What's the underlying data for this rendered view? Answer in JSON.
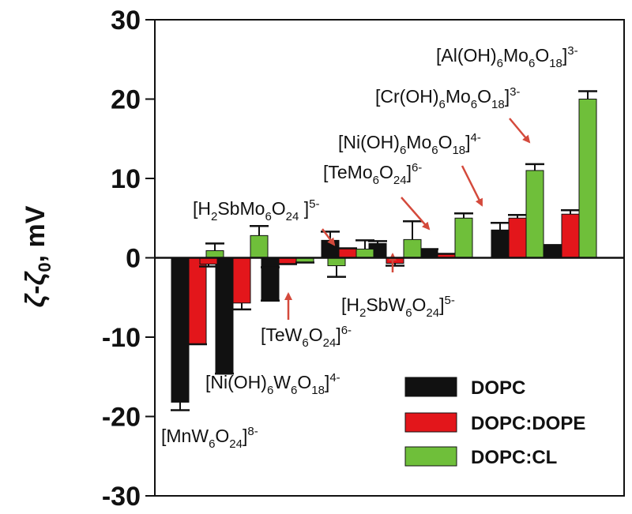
{
  "chart_data": {
    "type": "bar",
    "ylabel": "ζ-ζ0, mV",
    "ylabel_parts": {
      "zeta": "ζ",
      "dash": "-",
      "zeta0": "ζ",
      "sub0": "0",
      "unit": ", mV"
    },
    "ylim": [
      -30,
      30
    ],
    "yticks": [
      -30,
      -20,
      -10,
      0,
      10,
      20,
      30
    ],
    "ytick_labels": [
      "-30",
      "-20",
      "-10",
      "0",
      "10",
      "20",
      "30"
    ],
    "grid": false,
    "legend_position": "bottom-right",
    "series": [
      {
        "name": "DOPC",
        "color": "#111111",
        "values": [
          -18.2,
          -14.6,
          -5.4,
          2.2,
          1.8,
          1.1,
          3.5,
          1.6
        ],
        "errors": [
          1.0,
          0.0,
          0.0,
          1.1,
          0.3,
          0.0,
          0.9,
          0.0
        ]
      },
      {
        "name": "DOPC:DOPE",
        "color": "#e3161b",
        "values": [
          -10.9,
          -5.7,
          -0.8,
          1.2,
          -0.7,
          0.5,
          5.0,
          5.5
        ],
        "errors": [
          0.0,
          0.8,
          0.0,
          0.0,
          0.3,
          0.0,
          0.4,
          0.5
        ]
      },
      {
        "name": "DOPC:CL",
        "color": "#6fbf3a",
        "values": [
          0.9,
          2.8,
          -0.6,
          1.1,
          2.3,
          5.0,
          11.0,
          20.0
        ],
        "errors": [
          0.9,
          1.2,
          0.0,
          1.1,
          2.3,
          0.6,
          0.8,
          1.0
        ]
      }
    ],
    "extra_bars": [
      {
        "series": 1,
        "group": 0,
        "value": -0.8,
        "error": 0.3
      },
      {
        "series": 0,
        "group": 2,
        "value": -1.2,
        "error": 0.0
      },
      {
        "series": 2,
        "group": 2,
        "value": -1.0,
        "error": 1.4
      }
    ],
    "annotations": [
      {
        "id": "mnw6o24",
        "parts": [
          [
            "[MnW",
            ""
          ],
          [
            "6",
            "sub"
          ],
          [
            "O",
            ""
          ],
          [
            "24",
            "sub"
          ],
          [
            "]",
            ""
          ],
          [
            "8-",
            "sup"
          ]
        ]
      },
      {
        "id": "nioh6w6o18",
        "parts": [
          [
            "[Ni(OH)",
            ""
          ],
          [
            "6",
            "sub"
          ],
          [
            "W",
            ""
          ],
          [
            "6",
            "sub"
          ],
          [
            "O",
            ""
          ],
          [
            "18",
            "sub"
          ],
          [
            "]",
            ""
          ],
          [
            "4-",
            "sup"
          ]
        ]
      },
      {
        "id": "tew6o24",
        "parts": [
          [
            "[TeW",
            ""
          ],
          [
            "6",
            "sub"
          ],
          [
            "O",
            ""
          ],
          [
            "24",
            "sub"
          ],
          [
            "]",
            ""
          ],
          [
            "6-",
            "sup"
          ]
        ]
      },
      {
        "id": "h2sbmo6o24",
        "parts": [
          [
            "[H",
            ""
          ],
          [
            "2",
            "sub"
          ],
          [
            "SbMo",
            ""
          ],
          [
            "6",
            "sub"
          ],
          [
            "O",
            ""
          ],
          [
            "24",
            "sub"
          ],
          [
            " ]",
            ""
          ],
          [
            "5-",
            "sup"
          ]
        ]
      },
      {
        "id": "h2sbw6o24",
        "parts": [
          [
            "[H",
            ""
          ],
          [
            "2",
            "sub"
          ],
          [
            "SbW",
            ""
          ],
          [
            "6",
            "sub"
          ],
          [
            "O",
            ""
          ],
          [
            "24",
            "sub"
          ],
          [
            "]",
            ""
          ],
          [
            "5-",
            "sup"
          ]
        ]
      },
      {
        "id": "temo6o24",
        "parts": [
          [
            "[TeMo",
            ""
          ],
          [
            "6",
            "sub"
          ],
          [
            "O",
            ""
          ],
          [
            "24",
            "sub"
          ],
          [
            "]",
            ""
          ],
          [
            "6-",
            "sup"
          ]
        ]
      },
      {
        "id": "niohmo6o18",
        "parts": [
          [
            "[Ni(OH)",
            ""
          ],
          [
            "6",
            "sub"
          ],
          [
            "Mo",
            ""
          ],
          [
            "6",
            "sub"
          ],
          [
            "O",
            ""
          ],
          [
            "18",
            "sub"
          ],
          [
            "]",
            ""
          ],
          [
            "4-",
            "sup"
          ]
        ]
      },
      {
        "id": "crohmo6o18",
        "parts": [
          [
            "[Cr(OH)",
            ""
          ],
          [
            "6",
            "sub"
          ],
          [
            "Mo",
            ""
          ],
          [
            "6",
            "sub"
          ],
          [
            "O",
            ""
          ],
          [
            "18",
            "sub"
          ],
          [
            "]",
            ""
          ],
          [
            "3-",
            "sup"
          ]
        ]
      },
      {
        "id": "alohmo6o18",
        "parts": [
          [
            "[Al(OH)",
            ""
          ],
          [
            "6",
            "sub"
          ],
          [
            "Mo",
            ""
          ],
          [
            "6",
            "sub"
          ],
          [
            "O",
            ""
          ],
          [
            "18",
            "sub"
          ],
          [
            "]",
            ""
          ],
          [
            "3-",
            "sup"
          ]
        ]
      }
    ]
  }
}
